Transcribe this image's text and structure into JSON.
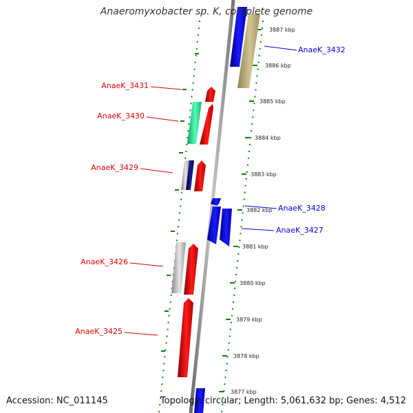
{
  "title": "Anaeromyxobacter sp. K, complete genome",
  "footer": {
    "accession": "Accession: NC_011145",
    "summary": "Topology: circular; Length: 5,061,632 bp; Genes: 4,512"
  },
  "colors": {
    "left_gene_label": "#dd0000",
    "right_gene_label": "#0000cc",
    "tick_green": "#008000",
    "genome_track": "#888888"
  },
  "kbp_ticks": [
    "3887 kbp",
    "3886 kbp",
    "3885 kbp",
    "3884 kbp",
    "3883 kbp",
    "3882 kbp",
    "3881 kbp",
    "3880 kbp",
    "3879 kbp",
    "3878 kbp",
    "3877 kbp"
  ],
  "genes_left": [
    {
      "label": "AnaeK_3431",
      "color": "red"
    },
    {
      "label": "AnaeK_3430",
      "color": "red"
    },
    {
      "label": "AnaeK_3429",
      "color": "red"
    },
    {
      "label": "AnaeK_3426",
      "color": "red"
    },
    {
      "label": "AnaeK_3425",
      "color": "red"
    }
  ],
  "genes_right": [
    {
      "label": "AnaeK_3432",
      "color": "blue"
    },
    {
      "label": "AnaeK_3428",
      "color": "blue"
    },
    {
      "label": "AnaeK_3427",
      "color": "blue"
    }
  ]
}
